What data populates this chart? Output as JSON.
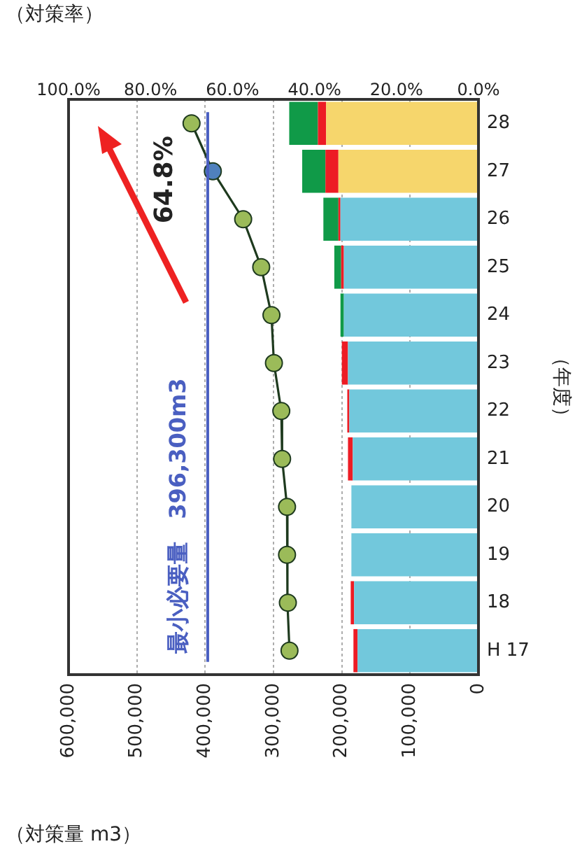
{
  "chart_data": {
    "type": "bar",
    "orientation": "horizontal",
    "stacked": true,
    "grid": "x",
    "legend": false,
    "xlabel": "（対策量 m3）",
    "x2label": "（対策率）",
    "ylabel": "（年度）",
    "categories": [
      "28",
      "27",
      "26",
      "25",
      "24",
      "23",
      "22",
      "21",
      "20",
      "19",
      "18",
      "H 17"
    ],
    "series": [
      {
        "colors": [
          "#f6d66c",
          "#f6d66c",
          "#72c8dc",
          "#72c8dc",
          "#72c8dc",
          "#72c8dc",
          "#72c8dc",
          "#72c8dc",
          "#72c8dc",
          "#72c8dc",
          "#72c8dc",
          "#72c8dc"
        ],
        "values": [
          223000,
          205000,
          202000,
          197000,
          197000,
          191000,
          189000,
          184000,
          186000,
          186000,
          182000,
          177000
        ]
      },
      {
        "color": "#ed1c24",
        "values": [
          12000,
          19000,
          3000,
          4000,
          null,
          9000,
          3000,
          7000,
          null,
          null,
          5000,
          6000
        ]
      },
      {
        "color": "#109a48",
        "values": [
          42000,
          34000,
          22000,
          10000,
          5000,
          null,
          null,
          null,
          null,
          null,
          null,
          null
        ]
      },
      {
        "type": "line",
        "axis": "x2",
        "color": "#1e3a1e",
        "marker": "circle",
        "colors": [
          "#9bbb59",
          "#4f81bd",
          "#9bbb59",
          "#9bbb59",
          "#9bbb59",
          "#9bbb59",
          "#9bbb59",
          "#9bbb59",
          "#9bbb59",
          "#9bbb59",
          "#9bbb59",
          "#9bbb59"
        ],
        "values": [
          70.0,
          64.8,
          57.4,
          53.0,
          50.5,
          49.9,
          48.1,
          47.9,
          46.7,
          46.7,
          46.5,
          46.1
        ],
        "value_labels": [
          null,
          "64.8%",
          null,
          null,
          null,
          null,
          null,
          null,
          null,
          null,
          null,
          null
        ]
      }
    ],
    "xlim": [
      600000,
      0
    ],
    "xticks": [
      {
        "value": 600000,
        "label": "600,000"
      },
      {
        "value": 500000,
        "label": "500,000"
      },
      {
        "value": 400000,
        "label": "400,000"
      },
      {
        "value": 300000,
        "label": "300,000"
      },
      {
        "value": 200000,
        "label": "200,000"
      },
      {
        "value": 100000,
        "label": "100,000"
      },
      0
    ],
    "x2lim": [
      100,
      0
    ],
    "x2ticks": [
      {
        "value": 100,
        "label": "100.0%"
      },
      {
        "value": 80,
        "label": "80.0%"
      },
      {
        "value": 60,
        "label": "60.0%"
      },
      {
        "value": 40,
        "label": "40.0%"
      },
      {
        "value": 20,
        "label": "20.0%"
      },
      {
        "value": 0,
        "label": "0.0%"
      }
    ],
    "ref_lines": [
      {
        "axis": "x",
        "value": 396300,
        "label": "最小必要量　396,300m3",
        "color": "#4a5fc1"
      }
    ]
  }
}
